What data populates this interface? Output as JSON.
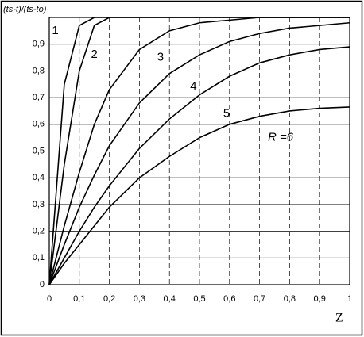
{
  "chart_data": {
    "type": "line",
    "y_label": "(ts-t)/(ts-to)",
    "x_label": "Z",
    "x": [
      0,
      0.05,
      0.1,
      0.15,
      0.2,
      0.3,
      0.4,
      0.5,
      0.6,
      0.7,
      0.8,
      0.9,
      1
    ],
    "series": [
      {
        "name": "1",
        "color": "#000000",
        "values": [
          0,
          0.75,
          0.97,
          1,
          1,
          1,
          1,
          1,
          1,
          1,
          1,
          1,
          1
        ]
      },
      {
        "name": "2",
        "color": "#000000",
        "values": [
          0,
          0.45,
          0.8,
          0.97,
          1,
          1,
          1,
          1,
          1,
          1,
          1,
          1,
          1
        ]
      },
      {
        "name": "3",
        "color": "#000000",
        "values": [
          0,
          0.22,
          0.42,
          0.6,
          0.73,
          0.88,
          0.95,
          0.98,
          0.99,
          1,
          1,
          1,
          1
        ]
      },
      {
        "name": "4",
        "color": "#000000",
        "values": [
          0,
          0.15,
          0.29,
          0.41,
          0.52,
          0.68,
          0.79,
          0.86,
          0.91,
          0.94,
          0.96,
          0.97,
          0.98
        ]
      },
      {
        "name": "5",
        "color": "#000000",
        "values": [
          0,
          0.1,
          0.2,
          0.29,
          0.37,
          0.51,
          0.62,
          0.71,
          0.78,
          0.83,
          0.86,
          0.88,
          0.89
        ]
      },
      {
        "name": "R =6",
        "color": "#000000",
        "values": [
          0,
          0.08,
          0.15,
          0.22,
          0.29,
          0.4,
          0.48,
          0.55,
          0.6,
          0.63,
          0.65,
          0.66,
          0.665
        ]
      }
    ],
    "xlim": [
      0,
      1
    ],
    "ylim": [
      0,
      1
    ],
    "xticks": [
      0,
      {
        "value": 0.1,
        "label": "0,1"
      },
      {
        "value": 0.2,
        "label": "0,2"
      },
      {
        "value": 0.3,
        "label": "0,3"
      },
      {
        "value": 0.4,
        "label": "0,4"
      },
      {
        "value": 0.5,
        "label": "0,5"
      },
      {
        "value": 0.6,
        "label": "0,6"
      },
      {
        "value": 0.7,
        "label": "0,7"
      },
      {
        "value": 0.8,
        "label": "0,8"
      },
      {
        "value": 0.9,
        "label": "0,9"
      },
      1
    ],
    "yticks": [
      0,
      {
        "value": 0.1,
        "label": "0,1"
      },
      {
        "value": 0.2,
        "label": "0,2"
      },
      {
        "value": 0.3,
        "label": "0,3"
      },
      {
        "value": 0.4,
        "label": "0,4"
      },
      {
        "value": 0.5,
        "label": "0,5"
      },
      {
        "value": 0.6,
        "label": "0,6"
      },
      {
        "value": 0.7,
        "label": "0,7"
      },
      {
        "value": 0.8,
        "label": "0,8"
      },
      {
        "value": 0.9,
        "label": "0,9"
      }
    ],
    "grid": true
  }
}
